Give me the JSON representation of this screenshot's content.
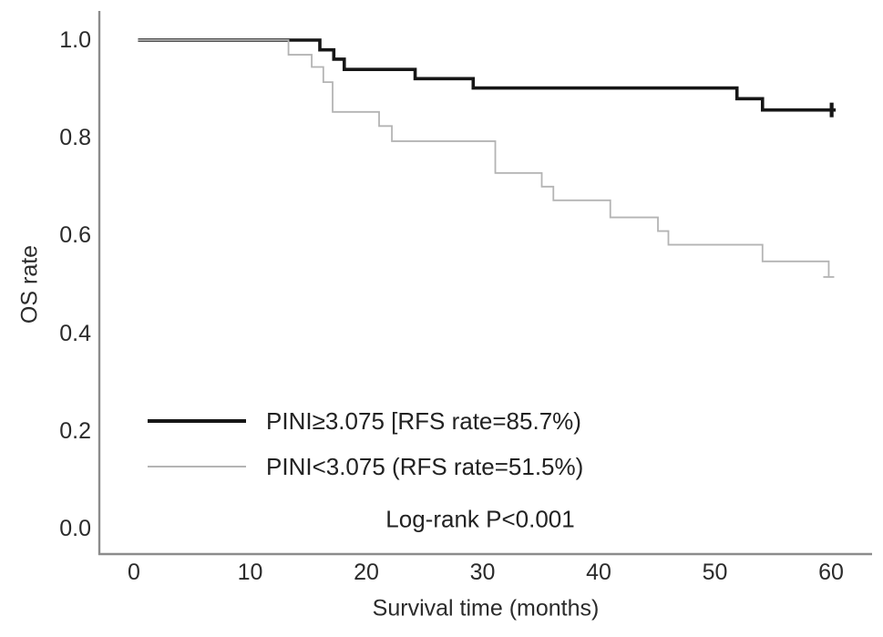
{
  "figure": {
    "background": "#ffffff",
    "axis_color": "#8c8c8c",
    "text_color": "#2b2b2b"
  },
  "chart_data": {
    "type": "line",
    "subtype": "kaplan-meier-step",
    "title": "",
    "xlabel": "Survival time (months)",
    "ylabel": "OS rate",
    "x_ticks": [
      0,
      10,
      20,
      30,
      40,
      50,
      60
    ],
    "x_tick_labels": [
      "0",
      "10",
      "20",
      "30",
      "40",
      "50",
      "60"
    ],
    "y_ticks": [
      1.0,
      0.8,
      0.6,
      0.4,
      0.2,
      0.0
    ],
    "y_tick_labels": [
      "1.0",
      "0.8",
      "0.6",
      "0.4",
      "0.2",
      "0.0"
    ],
    "xlim": [
      -3,
      63.5
    ],
    "ylim": [
      -0.05,
      1.06
    ],
    "grid": false,
    "legend_position": "lower-left-inside",
    "annotation": "Log-rank P<0.001",
    "series": [
      {
        "name": "PINI≥3.075 [RFS rate=85.7%)",
        "color": "#161616",
        "line_width": 3.6,
        "start": [
          0.35,
          1.0
        ],
        "drops": [
          [
            16.0,
            0.98
          ],
          [
            17.2,
            0.961
          ],
          [
            18.1,
            0.94
          ],
          [
            24.2,
            0.921
          ],
          [
            29.2,
            0.902
          ],
          [
            51.9,
            0.88
          ],
          [
            54.1,
            0.857
          ]
        ],
        "end_month": 60.4,
        "final_rate": 0.857,
        "censor_marks": [
          {
            "month": 60.05,
            "value": 0.857,
            "shape": "vertical-tick"
          }
        ]
      },
      {
        "name": "PINI<3.075 (RFS rate=51.5%)",
        "color": "#b4b4b4",
        "line_width": 1.8,
        "start": [
          0.35,
          1.0
        ],
        "drops": [
          [
            13.3,
            0.97
          ],
          [
            15.3,
            0.945
          ],
          [
            16.3,
            0.914
          ],
          [
            17.1,
            0.853
          ],
          [
            21.1,
            0.824
          ],
          [
            22.2,
            0.793
          ],
          [
            31.1,
            0.728
          ],
          [
            35.1,
            0.7
          ],
          [
            36.1,
            0.672
          ],
          [
            41.0,
            0.637
          ],
          [
            45.1,
            0.609
          ],
          [
            46.0,
            0.581
          ],
          [
            54.1,
            0.547
          ],
          [
            59.8,
            0.515
          ]
        ],
        "end_month": 59.8,
        "final_rate": 0.515,
        "censor_marks": [
          {
            "month": 59.8,
            "value": 0.515,
            "shape": "horizontal-tick"
          }
        ]
      }
    ]
  },
  "legend": {
    "swatches": [
      {
        "color": "#161616",
        "thickness": 4
      },
      {
        "color": "#b4b4b4",
        "thickness": 2
      }
    ]
  }
}
